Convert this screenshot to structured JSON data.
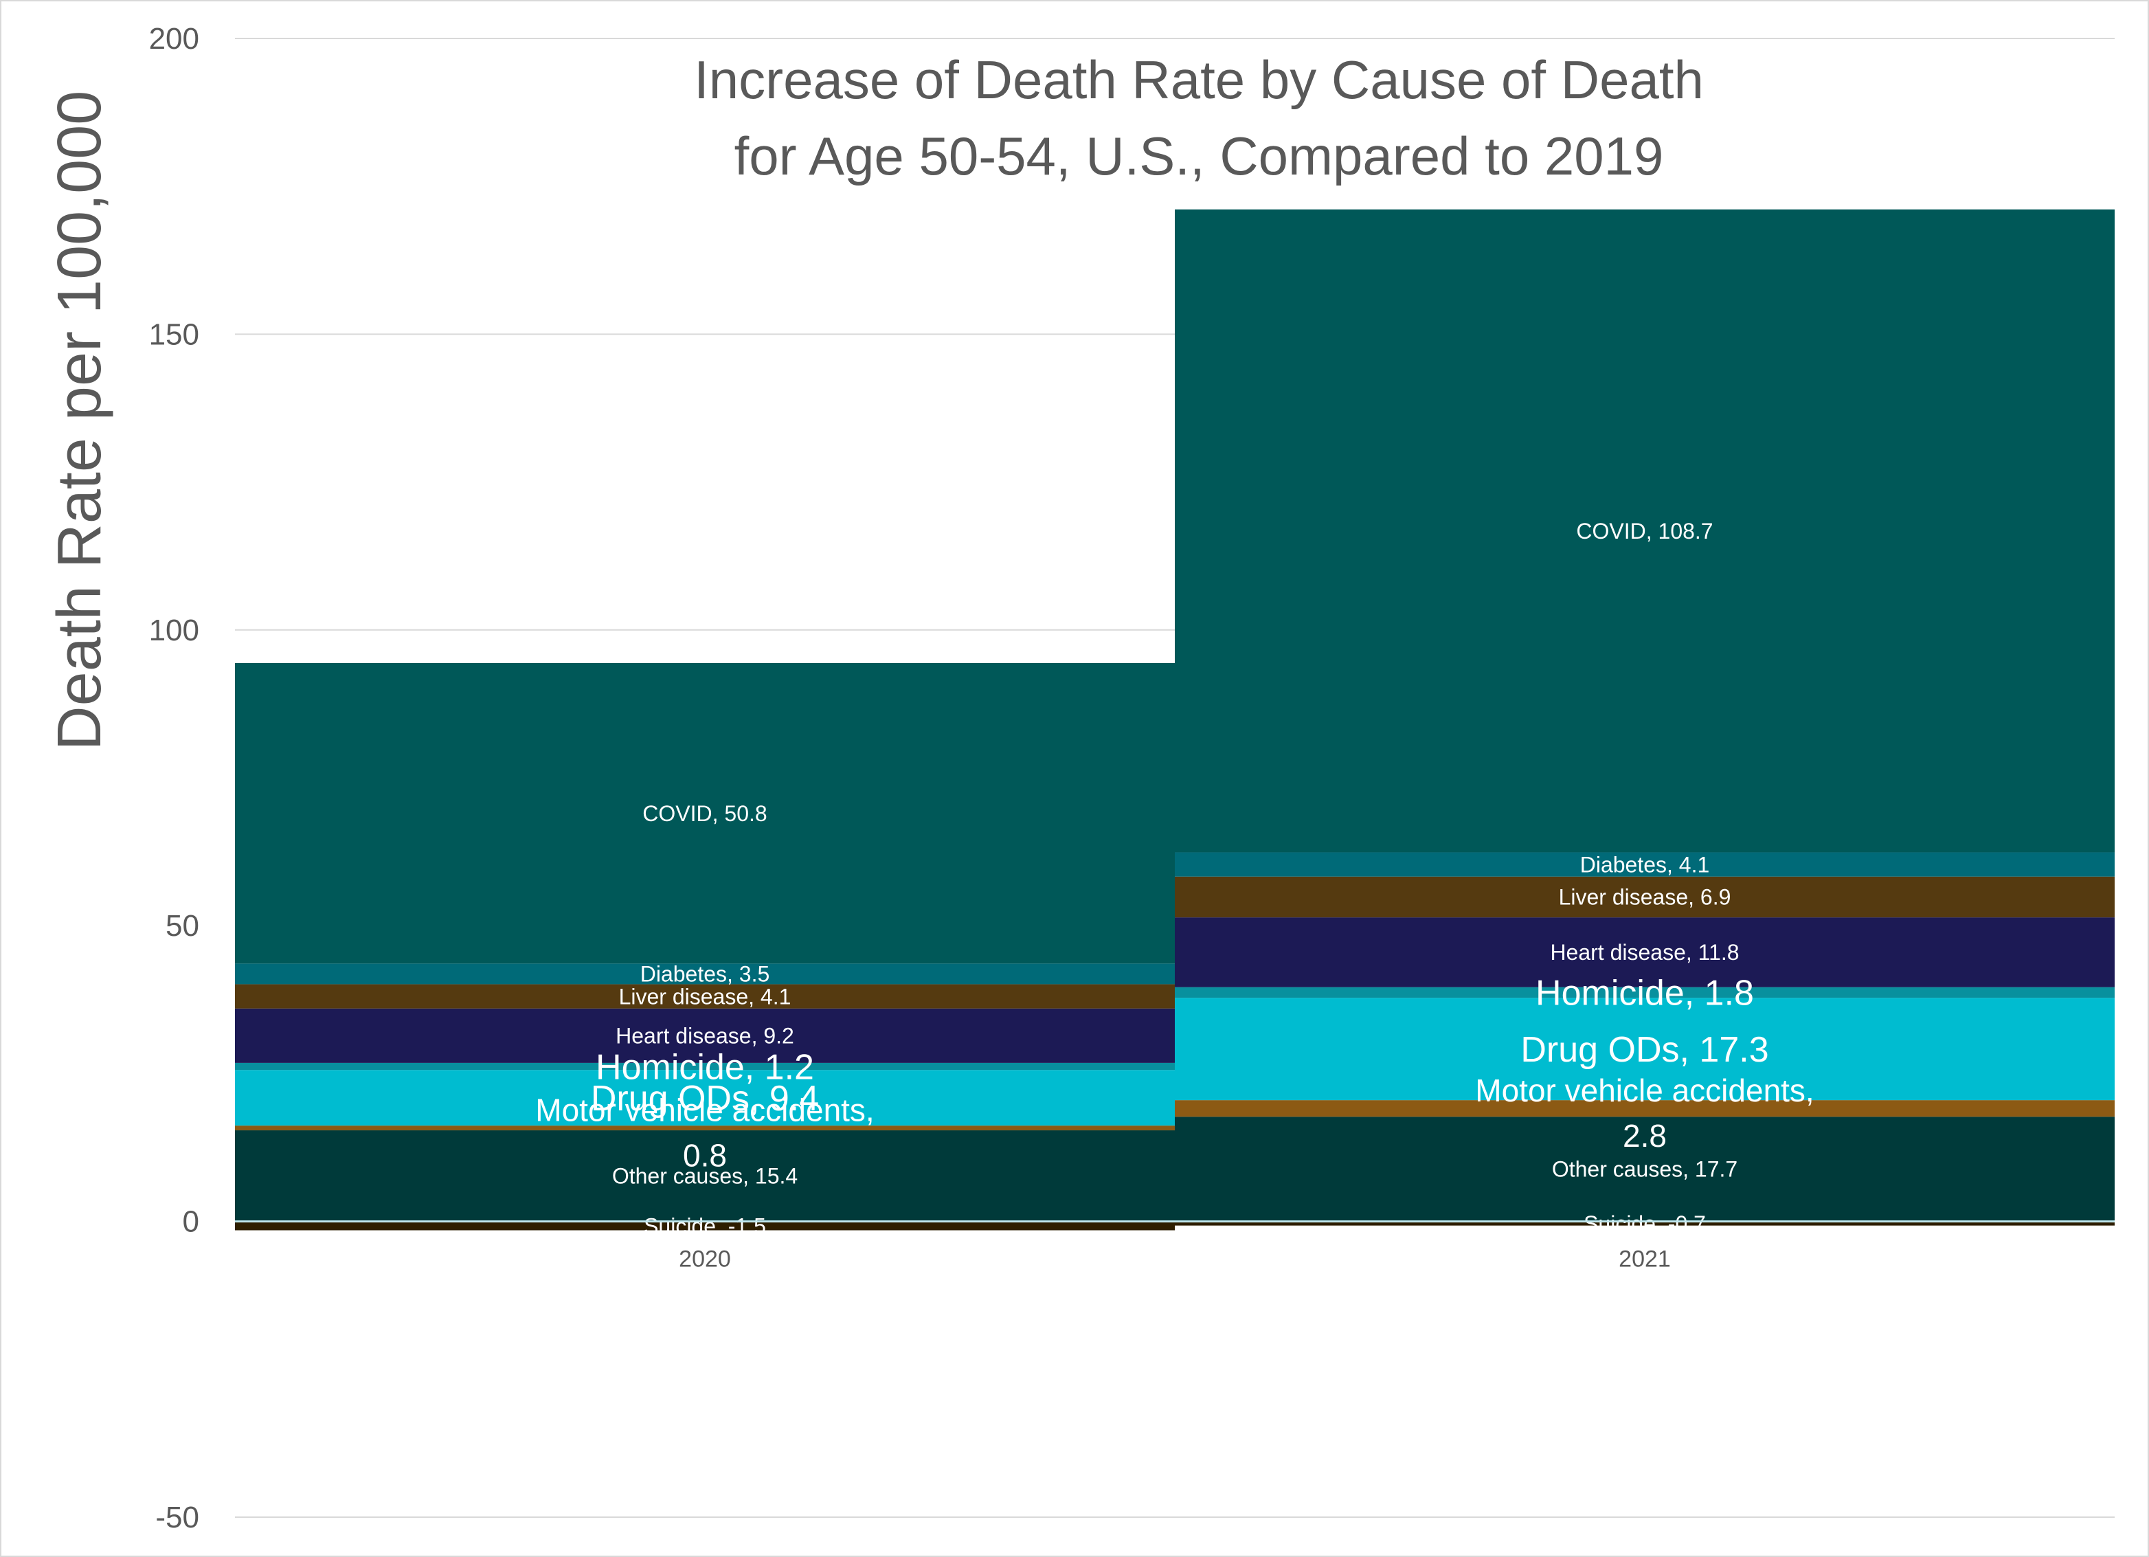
{
  "chart_data": {
    "type": "bar",
    "stacked": true,
    "title": "Increase of Death Rate by Cause of Death for Age 50-54, U.S., Compared to 2019",
    "title_lines": [
      "Increase of Death Rate by Cause of Death",
      "for Age 50-54, U.S., Compared to 2019"
    ],
    "xlabel": "",
    "ylabel": "Death Rate per 100,000",
    "ylim": [
      -50,
      200
    ],
    "yticks": [
      "-50",
      "0",
      "50",
      "100",
      "150",
      "200"
    ],
    "categories": [
      "2020",
      "2021"
    ],
    "grid": true,
    "legend": "none",
    "series": [
      {
        "name": "Suicide",
        "values": [
          -1.5,
          -0.7
        ],
        "color": "#2e1e00",
        "labels": [
          "Suicide, -1.5",
          "Suicide, -0.7"
        ]
      },
      {
        "name": "Other causes",
        "values": [
          15.4,
          17.7
        ],
        "color": "#003a3a",
        "labels": [
          "Other causes, 15.4",
          "Other causes, 17.7"
        ]
      },
      {
        "name": "Motor vehicle accidents",
        "values": [
          0.8,
          2.8
        ],
        "color": "#8c5a14",
        "labels": [
          "Motor vehicle accidents, 0.8",
          "Motor vehicle accidents, 2.8"
        ]
      },
      {
        "name": "Drug ODs",
        "values": [
          9.4,
          17.3
        ],
        "color": "#00bcd0",
        "labels": [
          "Drug ODs, 9.4",
          "Drug ODs, 17.3"
        ]
      },
      {
        "name": "Homicide",
        "values": [
          1.2,
          1.8
        ],
        "color": "#08909e",
        "labels": [
          "Homicide, 1.2",
          "Homicide, 1.8"
        ]
      },
      {
        "name": "Heart disease",
        "values": [
          9.2,
          11.8
        ],
        "color": "#1c1a55",
        "labels": [
          "Heart disease, 9.2",
          "Heart disease, 11.8"
        ]
      },
      {
        "name": "Liver disease",
        "values": [
          4.1,
          6.9
        ],
        "color": "#553a10",
        "labels": [
          "Liver disease, 4.1",
          "Liver disease, 6.9"
        ]
      },
      {
        "name": "Diabetes",
        "values": [
          3.5,
          4.1
        ],
        "color": "#006a78",
        "labels": [
          "Diabetes, 3.5",
          "Diabetes, 4.1"
        ]
      },
      {
        "name": "COVID",
        "values": [
          50.8,
          108.7
        ],
        "color": "#005858",
        "labels": [
          "COVID, 50.8",
          "COVID, 108.7"
        ]
      }
    ]
  }
}
